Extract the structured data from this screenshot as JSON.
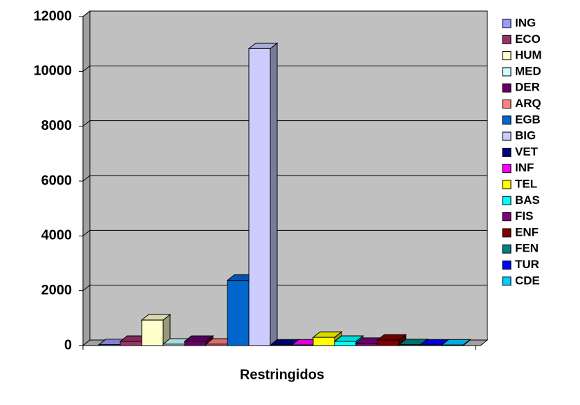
{
  "chart_data": {
    "type": "bar3d",
    "categories": [
      "Restringidos"
    ],
    "ylim": [
      0,
      12000
    ],
    "yticks": [
      0,
      2000,
      4000,
      6000,
      8000,
      10000,
      12000
    ],
    "grid": true,
    "legend": "right",
    "series": [
      {
        "name": "ING",
        "color": "#9999ff",
        "values": [
          30
        ]
      },
      {
        "name": "ECO",
        "color": "#993366",
        "values": [
          150
        ]
      },
      {
        "name": "HUM",
        "color": "#ffffcc",
        "values": [
          930
        ]
      },
      {
        "name": "MED",
        "color": "#ccffff",
        "values": [
          50
        ]
      },
      {
        "name": "DER",
        "color": "#660066",
        "values": [
          150
        ]
      },
      {
        "name": "ARQ",
        "color": "#ff8080",
        "values": [
          50
        ]
      },
      {
        "name": "EGB",
        "color": "#0066cc",
        "values": [
          2380
        ]
      },
      {
        "name": "BIG",
        "color": "#ccccff",
        "values": [
          10830
        ]
      },
      {
        "name": "VET",
        "color": "#000080",
        "values": [
          20
        ]
      },
      {
        "name": "INF",
        "color": "#ff00ff",
        "values": [
          20
        ]
      },
      {
        "name": "TEL",
        "color": "#ffff00",
        "values": [
          300
        ]
      },
      {
        "name": "BAS",
        "color": "#00ffff",
        "values": [
          150
        ]
      },
      {
        "name": "FIS",
        "color": "#800080",
        "values": [
          80
        ]
      },
      {
        "name": "ENF",
        "color": "#800000",
        "values": [
          200
        ]
      },
      {
        "name": "FEN",
        "color": "#008080",
        "values": [
          30
        ]
      },
      {
        "name": "TUR",
        "color": "#0000ff",
        "values": [
          20
        ]
      },
      {
        "name": "CDE",
        "color": "#00ccff",
        "values": [
          20
        ]
      }
    ]
  }
}
